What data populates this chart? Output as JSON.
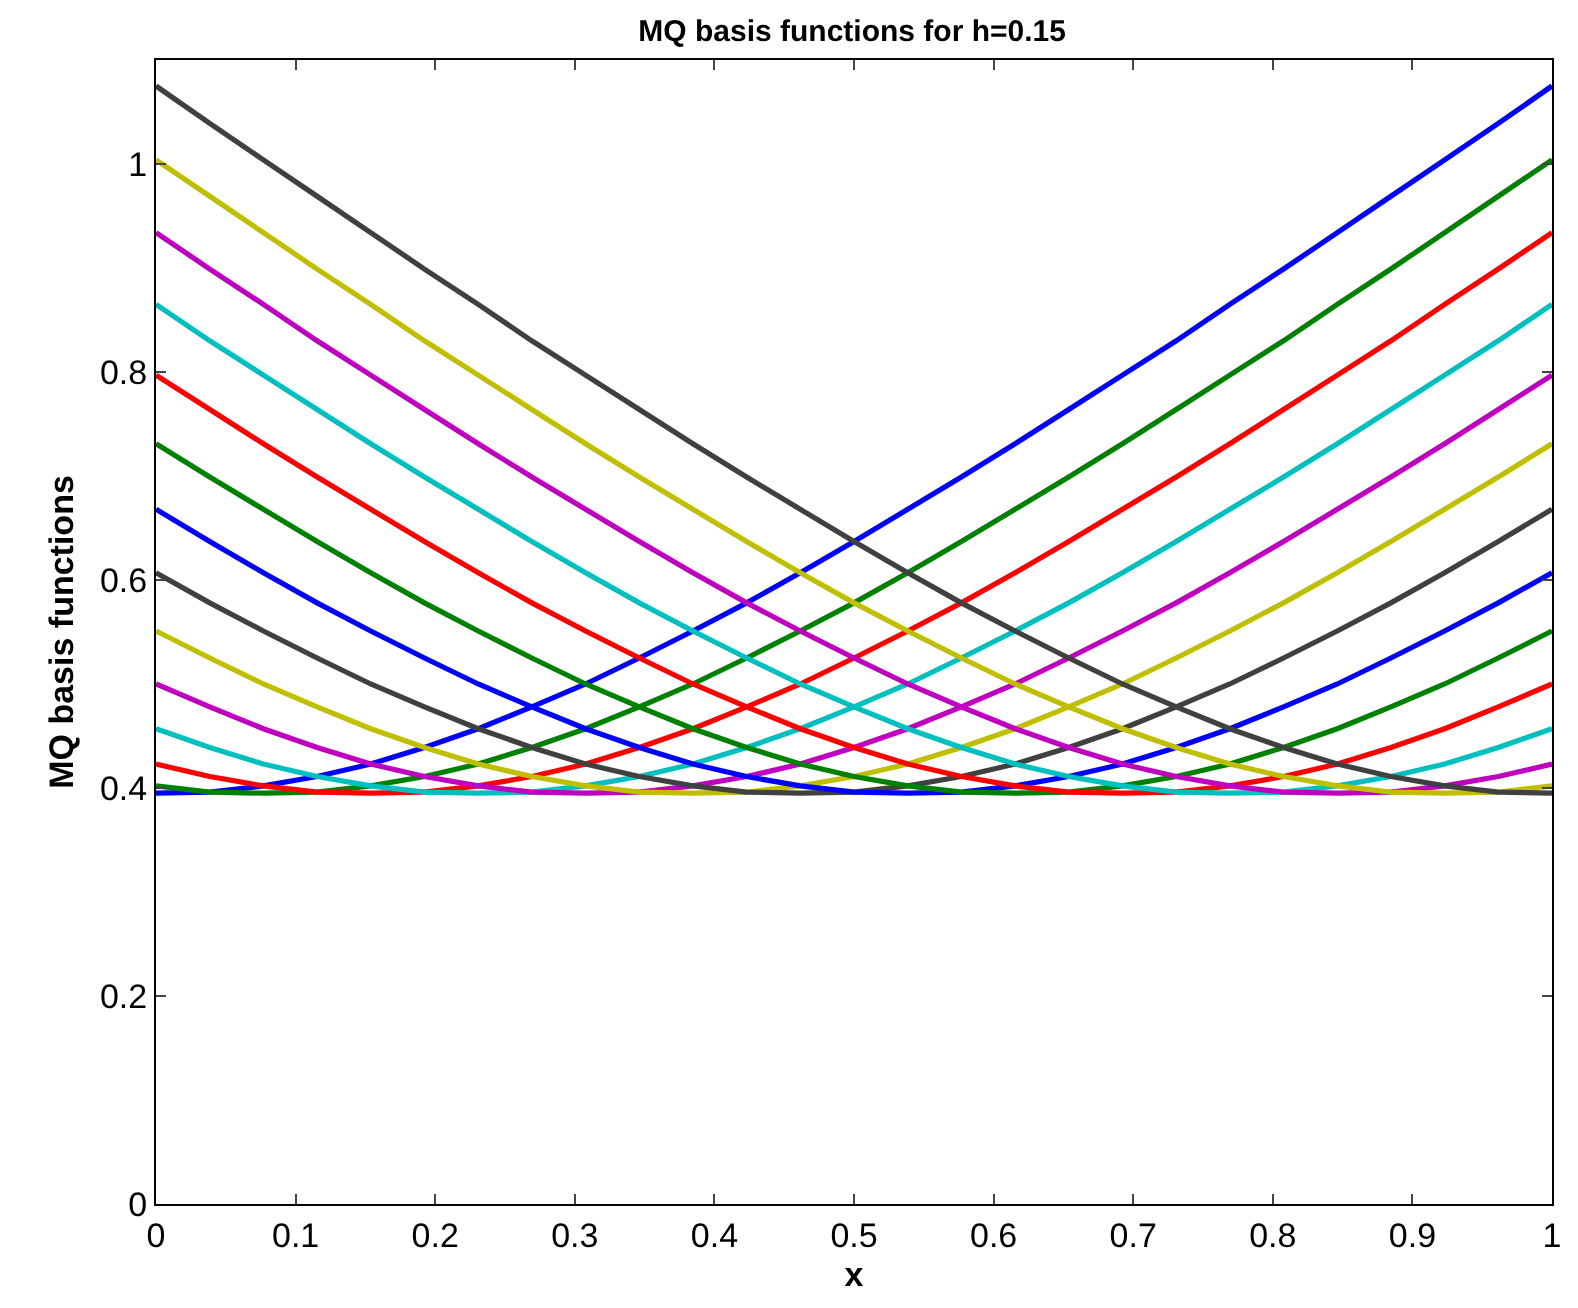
{
  "chart_data": {
    "type": "line",
    "title": "MQ basis functions for h=0.15",
    "xlabel": "x",
    "ylabel": "MQ basis functions",
    "x": [
      0,
      0.0385,
      0.0769,
      0.1154,
      0.1538,
      0.1923,
      0.2308,
      0.2692,
      0.3077,
      0.3462,
      0.3846,
      0.4231,
      0.4615,
      0.5,
      0.5385,
      0.5769,
      0.6154,
      0.6538,
      0.6923,
      0.7308,
      0.7692,
      0.8077,
      0.8462,
      0.8846,
      0.9231,
      0.9615,
      1
    ],
    "xlim": [
      0,
      1
    ],
    "xticks": [
      0,
      0.1,
      0.2,
      0.3,
      0.4,
      0.5,
      0.6,
      0.7,
      0.8,
      0.9,
      1
    ],
    "ylim": [
      0,
      1.1
    ],
    "yticks": [
      0,
      0.2,
      0.4,
      0.6,
      0.8,
      1
    ],
    "line_style": "solid",
    "series": [
      {
        "color": "#0000ff",
        "values": [
          0.395,
          0.396,
          0.402,
          0.411,
          0.423,
          0.439,
          0.457,
          0.478,
          0.5,
          0.525,
          0.551,
          0.578,
          0.607,
          0.637,
          0.668,
          0.699,
          0.731,
          0.764,
          0.797,
          0.83,
          0.865,
          0.899,
          0.934,
          0.969,
          1.004,
          1.039,
          1.075
        ]
      },
      {
        "color": "#008000",
        "values": [
          0.402,
          0.396,
          0.395,
          0.396,
          0.402,
          0.411,
          0.423,
          0.439,
          0.457,
          0.478,
          0.5,
          0.525,
          0.551,
          0.578,
          0.607,
          0.637,
          0.668,
          0.699,
          0.731,
          0.764,
          0.797,
          0.83,
          0.865,
          0.899,
          0.934,
          0.969,
          1.004
        ]
      },
      {
        "color": "#ff0000",
        "values": [
          0.423,
          0.411,
          0.402,
          0.396,
          0.395,
          0.396,
          0.402,
          0.411,
          0.423,
          0.439,
          0.457,
          0.478,
          0.5,
          0.525,
          0.551,
          0.578,
          0.607,
          0.637,
          0.668,
          0.699,
          0.731,
          0.764,
          0.797,
          0.83,
          0.865,
          0.899,
          0.934
        ]
      },
      {
        "color": "#00bfbf",
        "values": [
          0.457,
          0.439,
          0.423,
          0.411,
          0.402,
          0.396,
          0.395,
          0.396,
          0.402,
          0.411,
          0.423,
          0.439,
          0.457,
          0.478,
          0.5,
          0.525,
          0.551,
          0.578,
          0.607,
          0.637,
          0.668,
          0.699,
          0.731,
          0.764,
          0.797,
          0.83,
          0.865
        ]
      },
      {
        "color": "#bf00bf",
        "values": [
          0.5,
          0.478,
          0.457,
          0.439,
          0.423,
          0.411,
          0.402,
          0.396,
          0.395,
          0.396,
          0.402,
          0.411,
          0.423,
          0.439,
          0.457,
          0.478,
          0.5,
          0.525,
          0.551,
          0.578,
          0.607,
          0.637,
          0.668,
          0.699,
          0.731,
          0.764,
          0.797
        ]
      },
      {
        "color": "#bfbf00",
        "values": [
          0.551,
          0.525,
          0.5,
          0.478,
          0.457,
          0.439,
          0.423,
          0.411,
          0.402,
          0.396,
          0.395,
          0.396,
          0.402,
          0.411,
          0.423,
          0.439,
          0.457,
          0.478,
          0.5,
          0.525,
          0.551,
          0.578,
          0.607,
          0.637,
          0.668,
          0.699,
          0.731
        ]
      },
      {
        "color": "#404040",
        "values": [
          0.607,
          0.578,
          0.551,
          0.525,
          0.5,
          0.478,
          0.457,
          0.439,
          0.423,
          0.411,
          0.402,
          0.396,
          0.395,
          0.396,
          0.402,
          0.411,
          0.423,
          0.439,
          0.457,
          0.478,
          0.5,
          0.525,
          0.551,
          0.578,
          0.607,
          0.637,
          0.668
        ]
      },
      {
        "color": "#0000ff",
        "values": [
          0.668,
          0.637,
          0.607,
          0.578,
          0.551,
          0.525,
          0.5,
          0.478,
          0.457,
          0.439,
          0.423,
          0.411,
          0.402,
          0.396,
          0.395,
          0.396,
          0.402,
          0.411,
          0.423,
          0.439,
          0.457,
          0.478,
          0.5,
          0.525,
          0.551,
          0.578,
          0.607
        ]
      },
      {
        "color": "#008000",
        "values": [
          0.731,
          0.699,
          0.668,
          0.637,
          0.607,
          0.578,
          0.551,
          0.525,
          0.5,
          0.478,
          0.457,
          0.439,
          0.423,
          0.411,
          0.402,
          0.396,
          0.395,
          0.396,
          0.402,
          0.411,
          0.423,
          0.439,
          0.457,
          0.478,
          0.5,
          0.525,
          0.551
        ]
      },
      {
        "color": "#ff0000",
        "values": [
          0.797,
          0.764,
          0.731,
          0.699,
          0.668,
          0.637,
          0.607,
          0.578,
          0.551,
          0.525,
          0.5,
          0.478,
          0.457,
          0.439,
          0.423,
          0.411,
          0.402,
          0.396,
          0.395,
          0.396,
          0.402,
          0.411,
          0.423,
          0.439,
          0.457,
          0.478,
          0.5
        ]
      },
      {
        "color": "#00bfbf",
        "values": [
          0.865,
          0.83,
          0.797,
          0.764,
          0.731,
          0.699,
          0.668,
          0.637,
          0.607,
          0.578,
          0.551,
          0.525,
          0.5,
          0.478,
          0.457,
          0.439,
          0.423,
          0.411,
          0.402,
          0.396,
          0.395,
          0.396,
          0.402,
          0.411,
          0.423,
          0.439,
          0.457
        ]
      },
      {
        "color": "#bf00bf",
        "values": [
          0.934,
          0.899,
          0.865,
          0.83,
          0.797,
          0.764,
          0.731,
          0.699,
          0.668,
          0.637,
          0.607,
          0.578,
          0.551,
          0.525,
          0.5,
          0.478,
          0.457,
          0.439,
          0.423,
          0.411,
          0.402,
          0.396,
          0.395,
          0.396,
          0.402,
          0.411,
          0.423
        ]
      },
      {
        "color": "#bfbf00",
        "values": [
          1.004,
          0.969,
          0.934,
          0.899,
          0.865,
          0.83,
          0.797,
          0.764,
          0.731,
          0.699,
          0.668,
          0.637,
          0.607,
          0.578,
          0.551,
          0.525,
          0.5,
          0.478,
          0.457,
          0.439,
          0.423,
          0.411,
          0.402,
          0.396,
          0.395,
          0.396,
          0.402
        ]
      },
      {
        "color": "#404040",
        "values": [
          1.075,
          1.039,
          1.004,
          0.969,
          0.934,
          0.899,
          0.865,
          0.83,
          0.797,
          0.764,
          0.731,
          0.699,
          0.668,
          0.637,
          0.607,
          0.578,
          0.551,
          0.525,
          0.5,
          0.478,
          0.457,
          0.439,
          0.423,
          0.411,
          0.402,
          0.396,
          0.395
        ]
      }
    ]
  }
}
